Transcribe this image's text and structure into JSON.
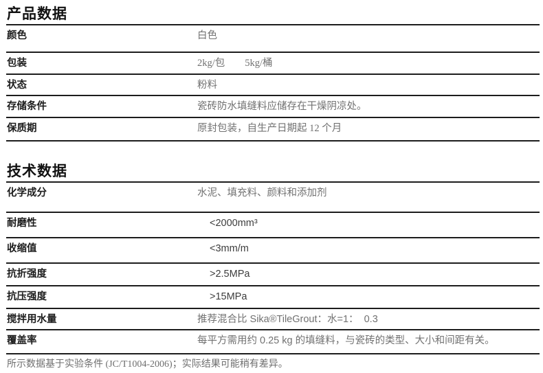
{
  "product_section": {
    "title": "产品数据",
    "rows": [
      {
        "label": "颜色",
        "value": "白色"
      },
      {
        "label": "包装",
        "value": "2kg/包        5kg/桶"
      },
      {
        "label": "状态",
        "value": "粉料"
      },
      {
        "label": "存储条件",
        "value": "瓷砖防水填缝料应储存在干燥阴凉处。"
      },
      {
        "label": "保质期",
        "value": "原封包装，自生产日期起 12 个月"
      }
    ]
  },
  "technical_section": {
    "title": "技术数据",
    "rows": [
      {
        "label": "化学成分",
        "value": "水泥、填充料、颜料和添加剂"
      },
      {
        "label": "耐磨性",
        "value": "<2000mm³"
      },
      {
        "label": "收缩值",
        "value": "<3mm/m"
      },
      {
        "label": "抗折强度",
        "value": ">2.5MPa"
      },
      {
        "label": "抗压强度",
        "value": ">15MPa"
      },
      {
        "label": "搅拌用水量",
        "value": "推荐混合比 Sika®TileGrout：水=1：  0.3"
      },
      {
        "label": "覆盖率",
        "value": "每平方需用约 0.25 kg 的填缝料，与瓷砖的类型、大小和间距有关。"
      }
    ]
  },
  "footer": {
    "note": "所示数据基于实验条件 (JC/T1004-2006)；实际结果可能稍有差异。"
  },
  "colors": {
    "rule": "#1c1c1c",
    "label_text": "#1c1c1c",
    "value_gray": "#717171",
    "value_dark": "#3c3c3c",
    "background": "#ffffff"
  }
}
